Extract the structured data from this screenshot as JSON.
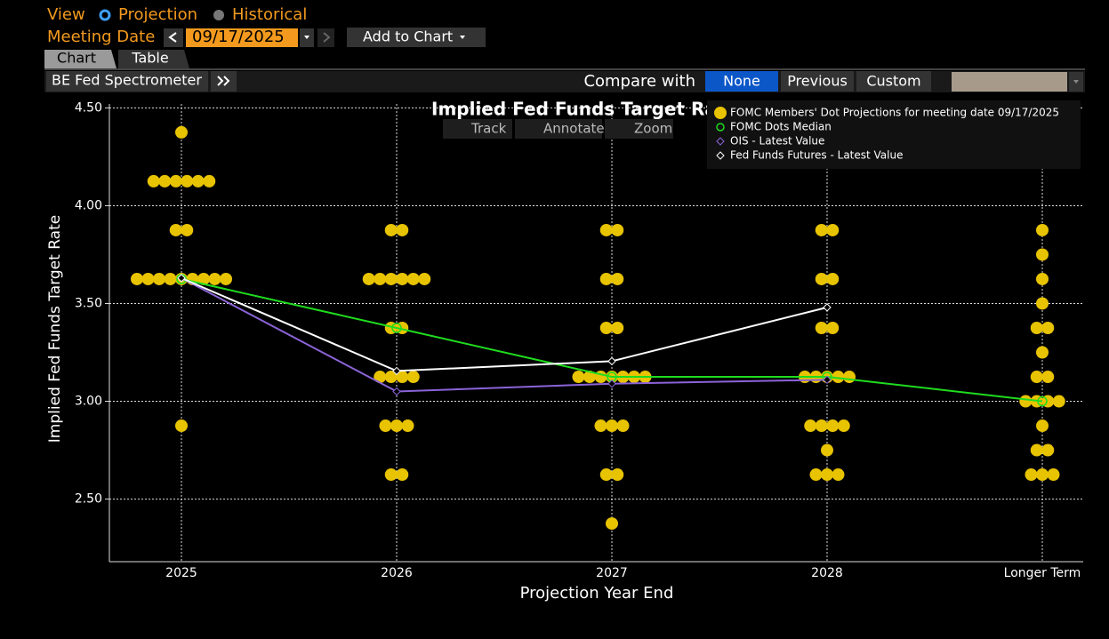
{
  "ui": {
    "view_label": "View",
    "view_options": [
      "Projection",
      "Historical"
    ],
    "meeting_date_label": "Meeting Date",
    "meeting_date": "09/17/2025",
    "add_to_chart": "Add to Chart",
    "tabs": [
      "Chart",
      "Table"
    ],
    "panel": "BE Fed Spectrometer",
    "compare_label": "Compare with",
    "compare_options": [
      "None",
      "Previous",
      "Custom"
    ],
    "toolbar": [
      "Track",
      "Annotate",
      "Zoom"
    ]
  },
  "chart_data": {
    "type": "scatter",
    "title": "Implied Fed Funds Target Rate",
    "x_label": "Projection Year End",
    "y_label": "Implied Fed Funds Target Rate",
    "categories": [
      "2025",
      "2026",
      "2027",
      "2028",
      "Longer Term"
    ],
    "ylim": [
      2.18,
      4.52
    ],
    "yticks": [
      {
        "value": 2.5,
        "label": "2.50"
      },
      {
        "value": 3,
        "label": "3.00"
      },
      {
        "value": 3.5,
        "label": "3.50"
      },
      {
        "value": 4,
        "label": "4.00"
      },
      {
        "value": 4.5,
        "label": "4.50"
      }
    ],
    "grid": true,
    "series": [
      {
        "name": "FOMC Members' Dot Projections for meeting date 09/17/2025",
        "type": "scatter",
        "color": "#e8c300",
        "values": [
          [
            4.375,
            4.125,
            4.125,
            4.125,
            4.125,
            4.125,
            4.125,
            3.875,
            3.875,
            3.625,
            3.625,
            3.625,
            3.625,
            3.625,
            3.625,
            3.625,
            3.625,
            3.625,
            2.875
          ],
          [
            3.875,
            3.875,
            3.625,
            3.625,
            3.625,
            3.625,
            3.625,
            3.625,
            3.375,
            3.375,
            3.125,
            3.125,
            3.125,
            3.125,
            2.875,
            2.875,
            2.875,
            2.625,
            2.625
          ],
          [
            3.875,
            3.875,
            3.625,
            3.625,
            3.375,
            3.375,
            3.125,
            3.125,
            3.125,
            3.125,
            3.125,
            3.125,
            3.125,
            2.875,
            2.875,
            2.875,
            2.625,
            2.625,
            2.375
          ],
          [
            3.875,
            3.875,
            3.625,
            3.625,
            3.375,
            3.375,
            3.125,
            3.125,
            3.125,
            3.125,
            3.125,
            2.875,
            2.875,
            2.875,
            2.875,
            2.75,
            2.625,
            2.625,
            2.625
          ],
          [
            3.875,
            3.75,
            3.625,
            3.5,
            3.375,
            3.375,
            3.25,
            3.125,
            3.125,
            3,
            3,
            3,
            3,
            2.875,
            2.75,
            2.75,
            2.625,
            2.625,
            2.625
          ]
        ]
      },
      {
        "name": "FOMC Dots Median",
        "type": "line",
        "marker": "circle",
        "color": "#1fdc1f",
        "values": [
          3.625,
          3.375,
          3.125,
          3.125,
          3
        ]
      },
      {
        "name": "OIS - Latest Value",
        "type": "line",
        "marker": "diamond",
        "color": "#8b63d8",
        "values": [
          3.63,
          3.05,
          3.09,
          3.11,
          null
        ]
      },
      {
        "name": "Fed Funds Futures - Latest Value",
        "type": "line",
        "marker": "diamond",
        "color": "#ffffff",
        "values": [
          3.63,
          3.155,
          3.205,
          3.48,
          null
        ]
      }
    ]
  }
}
